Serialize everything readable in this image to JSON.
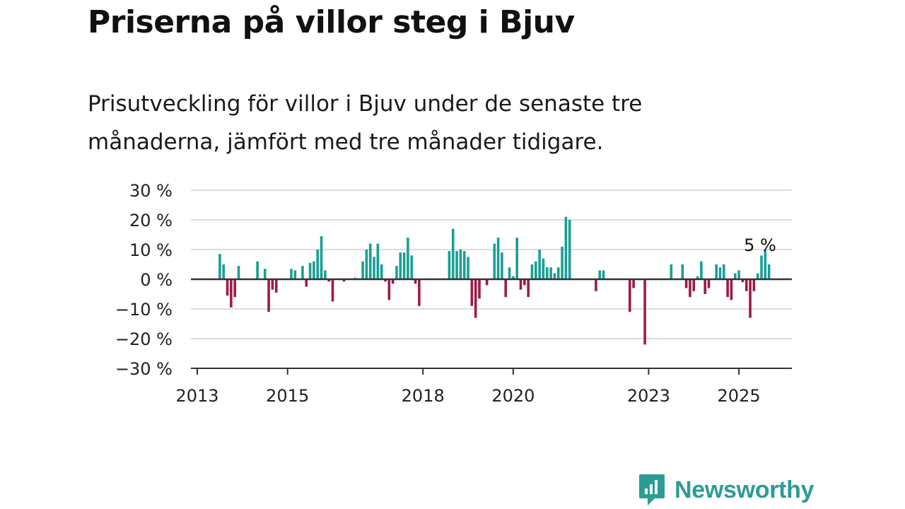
{
  "title": "Priserna på villor steg i Bjuv",
  "subtitle": "Prisutveckling för villor i Bjuv under de senaste tre månaderna, jämfört med tre månader tidigare.",
  "brand": {
    "name": "Newsworthy",
    "icon": "newsworthy-logo-icon",
    "color": "#2a9d96"
  },
  "colors": {
    "positive": "#1a9e94",
    "negative": "#9b1b4a",
    "grid": "#dddddd",
    "axis": "#333333"
  },
  "chart_data": {
    "type": "bar",
    "x_unit": "month index from January 2013",
    "ylim": [
      -30,
      30
    ],
    "yticks": [
      30,
      20,
      10,
      0,
      -10,
      -20,
      -30
    ],
    "ytick_labels": [
      "30 %",
      "20 %",
      "10 %",
      "0 %",
      "−10 %",
      "−20 %",
      "−30 %"
    ],
    "xticks": [
      {
        "label": "2013",
        "x": 0
      },
      {
        "label": "2015",
        "x": 24
      },
      {
        "label": "2018",
        "x": 60
      },
      {
        "label": "2020",
        "x": 84
      },
      {
        "label": "2023",
        "x": 120
      },
      {
        "label": "2025",
        "x": 144
      }
    ],
    "grid": true,
    "end_label": "5 %",
    "end_label_x": 150,
    "bars": [
      {
        "x": 6,
        "v": 8.5
      },
      {
        "x": 7,
        "v": 5
      },
      {
        "x": 8,
        "v": -5.5
      },
      {
        "x": 9,
        "v": -9.5
      },
      {
        "x": 10,
        "v": -6
      },
      {
        "x": 11,
        "v": 4.5
      },
      {
        "x": 16,
        "v": 6
      },
      {
        "x": 18,
        "v": 3.5
      },
      {
        "x": 19,
        "v": -11
      },
      {
        "x": 20,
        "v": -3.5
      },
      {
        "x": 21,
        "v": -4.5
      },
      {
        "x": 25,
        "v": 3.5
      },
      {
        "x": 26,
        "v": 3
      },
      {
        "x": 28,
        "v": 4.5
      },
      {
        "x": 29,
        "v": -2.5
      },
      {
        "x": 30,
        "v": 5.5
      },
      {
        "x": 31,
        "v": 6
      },
      {
        "x": 32,
        "v": 10
      },
      {
        "x": 33,
        "v": 14.5
      },
      {
        "x": 34,
        "v": 3
      },
      {
        "x": 35,
        "v": -0.8
      },
      {
        "x": 36,
        "v": -7.5
      },
      {
        "x": 39,
        "v": -0.8
      },
      {
        "x": 42,
        "v": 0.5
      },
      {
        "x": 44,
        "v": 6
      },
      {
        "x": 45,
        "v": 10
      },
      {
        "x": 46,
        "v": 12
      },
      {
        "x": 47,
        "v": 7.5
      },
      {
        "x": 48,
        "v": 12
      },
      {
        "x": 49,
        "v": 5
      },
      {
        "x": 50,
        "v": -0.8
      },
      {
        "x": 51,
        "v": -7
      },
      {
        "x": 52,
        "v": -1.5
      },
      {
        "x": 53,
        "v": 4.5
      },
      {
        "x": 54,
        "v": 9
      },
      {
        "x": 55,
        "v": 9
      },
      {
        "x": 56,
        "v": 14
      },
      {
        "x": 57,
        "v": 8
      },
      {
        "x": 58,
        "v": -1.5
      },
      {
        "x": 59,
        "v": -9
      },
      {
        "x": 67,
        "v": 9.5
      },
      {
        "x": 68,
        "v": 17
      },
      {
        "x": 69,
        "v": 9.5
      },
      {
        "x": 70,
        "v": 10
      },
      {
        "x": 71,
        "v": 9.5
      },
      {
        "x": 72,
        "v": 7.5
      },
      {
        "x": 73,
        "v": -9
      },
      {
        "x": 74,
        "v": -13
      },
      {
        "x": 75,
        "v": -6.5
      },
      {
        "x": 77,
        "v": -2
      },
      {
        "x": 79,
        "v": 12
      },
      {
        "x": 80,
        "v": 14
      },
      {
        "x": 81,
        "v": 9
      },
      {
        "x": 82,
        "v": -6
      },
      {
        "x": 83,
        "v": 4
      },
      {
        "x": 84,
        "v": 1
      },
      {
        "x": 85,
        "v": 14
      },
      {
        "x": 86,
        "v": -3.5
      },
      {
        "x": 87,
        "v": -2
      },
      {
        "x": 88,
        "v": -6
      },
      {
        "x": 89,
        "v": 5
      },
      {
        "x": 90,
        "v": 6
      },
      {
        "x": 91,
        "v": 10
      },
      {
        "x": 92,
        "v": 7
      },
      {
        "x": 93,
        "v": 4
      },
      {
        "x": 94,
        "v": 4
      },
      {
        "x": 95,
        "v": 2
      },
      {
        "x": 96,
        "v": 4
      },
      {
        "x": 97,
        "v": 11
      },
      {
        "x": 98,
        "v": 21
      },
      {
        "x": 99,
        "v": 20
      },
      {
        "x": 106,
        "v": -4
      },
      {
        "x": 107,
        "v": 3
      },
      {
        "x": 108,
        "v": 3
      },
      {
        "x": 115,
        "v": -11
      },
      {
        "x": 116,
        "v": -3
      },
      {
        "x": 119,
        "v": -22
      },
      {
        "x": 126,
        "v": 5
      },
      {
        "x": 129,
        "v": 5
      },
      {
        "x": 130,
        "v": -3
      },
      {
        "x": 131,
        "v": -6
      },
      {
        "x": 132,
        "v": -4
      },
      {
        "x": 133,
        "v": 1
      },
      {
        "x": 134,
        "v": 6
      },
      {
        "x": 135,
        "v": -5
      },
      {
        "x": 136,
        "v": -3
      },
      {
        "x": 138,
        "v": 5
      },
      {
        "x": 139,
        "v": 4
      },
      {
        "x": 140,
        "v": 5
      },
      {
        "x": 141,
        "v": -6
      },
      {
        "x": 142,
        "v": -7
      },
      {
        "x": 143,
        "v": 2
      },
      {
        "x": 144,
        "v": 3
      },
      {
        "x": 145,
        "v": -1
      },
      {
        "x": 146,
        "v": -4
      },
      {
        "x": 147,
        "v": -13
      },
      {
        "x": 148,
        "v": -4
      },
      {
        "x": 149,
        "v": 2
      },
      {
        "x": 150,
        "v": 8
      },
      {
        "x": 151,
        "v": 10
      },
      {
        "x": 152,
        "v": 5
      }
    ]
  }
}
